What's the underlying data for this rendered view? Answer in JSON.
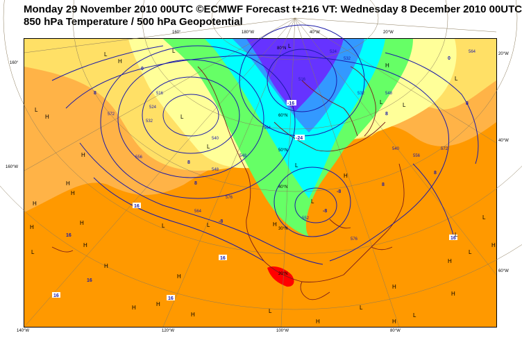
{
  "header": {
    "line1": "Monday 29 November 2010 00UTC ©ECMWF Forecast t+216 VT: Wednesday 8 December 2010 00UTC",
    "line2": "850 hPa Temperature / 500 hPa Geopotential"
  },
  "colors": {
    "background_warm": "#ff9900",
    "orange_light": "#ffb347",
    "yellow": "#ffe066",
    "pale_yellow": "#ffff99",
    "green": "#66ff66",
    "cyan": "#00ffff",
    "blue": "#3399ff",
    "purple": "#6633ff",
    "red": "#ff0000",
    "contour": "#1a1aa8",
    "coast": "#7a1a1a"
  },
  "axis_labels": {
    "top": [
      "160°",
      "180°W",
      "40°W",
      "20°W"
    ],
    "left": [
      "160°",
      "160°W"
    ],
    "right": [
      "20°W",
      "40°W",
      "60°W"
    ],
    "bottom": [
      "140°W",
      "120°W",
      "100°W",
      "80°W"
    ],
    "interior": [
      "80°N",
      "60°N",
      "50°N",
      "40°N",
      "30°N",
      "20°N"
    ]
  },
  "pressure_labels": [
    "L",
    "H",
    "L",
    "H",
    "L",
    "L",
    "L",
    "L",
    "H",
    "L",
    "H",
    "H",
    "H",
    "H",
    "H",
    "H",
    "L",
    "H",
    "L",
    "L",
    "H",
    "H",
    "H",
    "H",
    "L",
    "H",
    "L",
    "L",
    "H",
    "L",
    "H",
    "H",
    "L",
    "H",
    "L",
    "L",
    "H",
    "L",
    "H",
    "H",
    "L",
    "H",
    "L"
  ],
  "geopotential_labels": [
    "516",
    "524",
    "532",
    "540",
    "548",
    "556",
    "564",
    "572",
    "576",
    "540",
    "556",
    "564",
    "548",
    "532",
    "524",
    "516",
    "552",
    "576",
    "572",
    "532",
    "548",
    "564"
  ],
  "temperature_labels": [
    "8",
    "0",
    "8",
    "8",
    "8",
    "16",
    "16",
    "16",
    "16",
    "16",
    "-8",
    "-8",
    "16",
    "-16",
    "-24",
    "0",
    "8",
    "8",
    "16",
    "8",
    "-8"
  ]
}
